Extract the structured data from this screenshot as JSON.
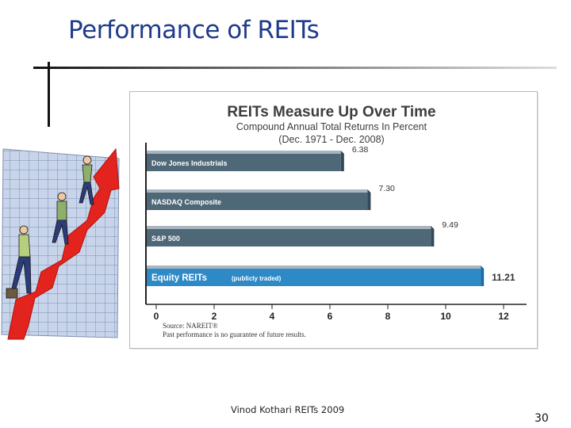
{
  "slide": {
    "title": "Performance of REITs",
    "footer": "Vinod Kothari REITs 2009",
    "page_number": "30"
  },
  "clipart": {
    "icon": "business-people-climbing-red-arrow-illustration"
  },
  "chart_data": {
    "type": "bar",
    "orientation": "horizontal",
    "title": "REITs Measure Up Over Time",
    "subtitle_line1": "Compound Annual Total Returns In Percent",
    "subtitle_line2": "(Dec. 1971 - Dec. 2008)",
    "categories": [
      "Dow Jones Industrials",
      "NASDAQ Composite",
      "S&P 500",
      "Equity REITs"
    ],
    "category_note": "(publicly traded)",
    "values": [
      6.38,
      7.3,
      9.49,
      11.21
    ],
    "value_labels": [
      "6.38",
      "7.30",
      "9.49",
      "11.21"
    ],
    "bar_colors": [
      "#4e6878",
      "#4e6878",
      "#4e6878",
      "#2e8ac6"
    ],
    "ticks": [
      "0",
      "2",
      "4",
      "6",
      "8",
      "10",
      "12"
    ],
    "xlim": [
      0,
      12
    ],
    "grid": false,
    "source_line1": "Source: NAREIT®",
    "source_line2": "Past performance is no guarantee of future results."
  }
}
